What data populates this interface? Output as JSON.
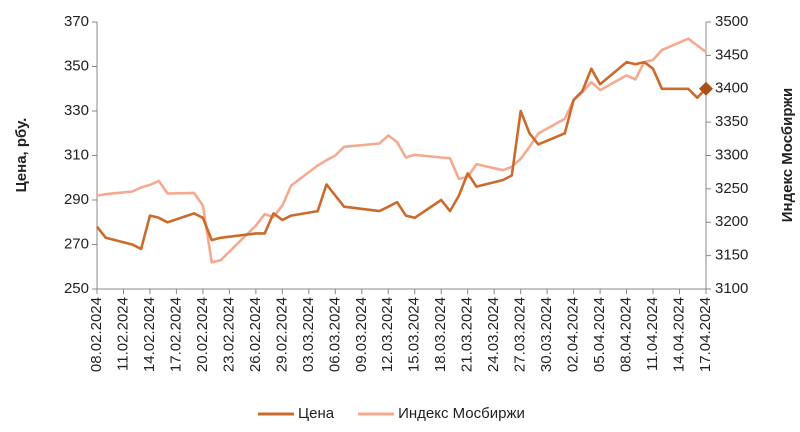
{
  "chart_data": {
    "type": "line",
    "y_label": "Цена, рбу.",
    "y2_label": "Индекс Мосбиржи",
    "x": [
      "08.02.2024",
      "09.02.2024",
      "12.02.2024",
      "13.02.2024",
      "14.02.2024",
      "15.02.2024",
      "16.02.2024",
      "19.02.2024",
      "20.02.2024",
      "21.02.2024",
      "22.02.2024",
      "26.02.2024",
      "27.02.2024",
      "28.02.2024",
      "29.02.2024",
      "01.03.2024",
      "04.03.2024",
      "05.03.2024",
      "06.03.2024",
      "07.03.2024",
      "11.03.2024",
      "12.03.2024",
      "13.03.2024",
      "14.03.2024",
      "15.03.2024",
      "18.03.2024",
      "19.03.2024",
      "20.03.2024",
      "21.03.2024",
      "22.03.2024",
      "25.03.2024",
      "26.03.2024",
      "27.03.2024",
      "28.03.2024",
      "29.03.2024",
      "01.04.2024",
      "02.04.2024",
      "03.04.2024",
      "04.04.2024",
      "05.04.2024",
      "08.04.2024",
      "09.04.2024",
      "10.04.2024",
      "11.04.2024",
      "12.04.2024",
      "15.04.2024",
      "16.04.2024",
      "17.04.2024"
    ],
    "series": [
      {
        "name": "Цена",
        "color": "#cc6a2c",
        "axis": "y",
        "values": [
          278,
          273,
          270,
          268,
          283,
          282,
          280,
          284,
          282,
          272,
          273,
          275,
          275,
          284,
          281,
          283,
          285,
          297,
          292,
          287,
          285,
          287,
          289,
          283,
          282,
          290,
          285,
          292,
          302,
          296,
          299,
          301,
          330,
          320,
          315,
          320,
          335,
          339,
          349,
          342,
          352,
          351,
          352,
          349,
          340,
          340,
          336,
          340
        ]
      },
      {
        "name": "Индекс Мосбиржи",
        "color": "#f4aa90",
        "axis": "y2",
        "values": [
          3240,
          3242,
          3246,
          3252,
          3256,
          3262,
          3243,
          3244,
          3225,
          3140,
          3143,
          3195,
          3212,
          3208,
          3225,
          3255,
          3285,
          3293,
          3300,
          3313,
          3318,
          3330,
          3320,
          3297,
          3301,
          3297,
          3296,
          3265,
          3268,
          3287,
          3278,
          3283,
          3295,
          3313,
          3333,
          3355,
          3383,
          3395,
          3410,
          3398,
          3420,
          3414,
          3440,
          3443,
          3458,
          3475,
          3465,
          3455
        ]
      }
    ],
    "xticks": [
      "08.02.2024",
      "11.02.2024",
      "14.02.2024",
      "17.02.2024",
      "20.02.2024",
      "23.02.2024",
      "26.02.2024",
      "29.02.2024",
      "03.03.2024",
      "06.03.2024",
      "09.03.2024",
      "12.03.2024",
      "15.03.2024",
      "18.03.2024",
      "21.03.2024",
      "24.03.2024",
      "27.03.2024",
      "30.03.2024",
      "02.04.2024",
      "05.04.2024",
      "08.04.2024",
      "11.04.2024",
      "14.04.2024",
      "17.04.2024"
    ],
    "ylim": [
      250,
      370
    ],
    "yticks": [
      250,
      270,
      290,
      310,
      330,
      350,
      370
    ],
    "y2lim": [
      3100,
      3500
    ],
    "y2ticks": [
      3100,
      3150,
      3200,
      3250,
      3300,
      3350,
      3400,
      3450,
      3500
    ],
    "legend": "bottom"
  }
}
